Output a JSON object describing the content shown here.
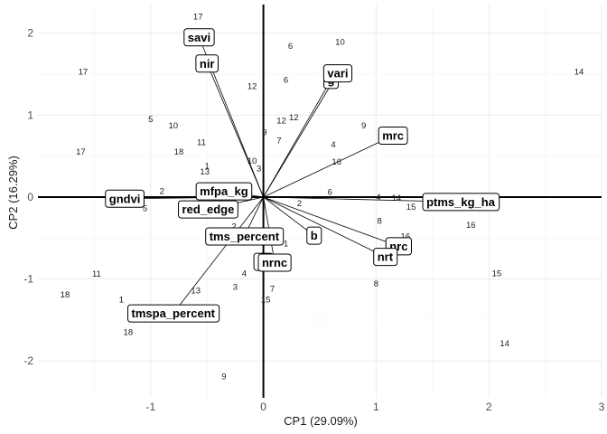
{
  "chart_data": {
    "type": "scatter",
    "subtype": "pca-biplot",
    "title": "",
    "xlabel": "CP1 (29.09%)",
    "ylabel": "CP2 (16.29%)",
    "xlim": [
      -2.0,
      3.0
    ],
    "ylim": [
      -2.45,
      2.35
    ],
    "xticks": [
      -1,
      0,
      1,
      2,
      3
    ],
    "yticks": [
      -2,
      -1,
      0,
      1,
      2
    ],
    "grid": true,
    "zero_lines": true,
    "observations": [
      {
        "label": "17",
        "x": -0.58,
        "y": 2.2
      },
      {
        "label": "17",
        "x": -1.6,
        "y": 1.53
      },
      {
        "label": "17",
        "x": -1.62,
        "y": 0.55
      },
      {
        "label": "5",
        "x": -1.0,
        "y": 0.95
      },
      {
        "label": "10",
        "x": -0.8,
        "y": 0.87
      },
      {
        "label": "18",
        "x": -0.75,
        "y": 0.55
      },
      {
        "label": "11",
        "x": -0.55,
        "y": 0.67
      },
      {
        "label": "13",
        "x": -0.52,
        "y": 0.31
      },
      {
        "label": "1",
        "x": -0.5,
        "y": 0.38
      },
      {
        "label": "10",
        "x": -0.1,
        "y": 0.44
      },
      {
        "label": "3",
        "x": -0.04,
        "y": 0.35
      },
      {
        "label": "2",
        "x": -0.9,
        "y": 0.07
      },
      {
        "label": "5",
        "x": -1.05,
        "y": -0.14
      },
      {
        "label": "2",
        "x": -0.26,
        "y": -0.36
      },
      {
        "label": "4",
        "x": -0.17,
        "y": -0.93
      },
      {
        "label": "3",
        "x": -0.25,
        "y": -1.1
      },
      {
        "label": "13",
        "x": -0.6,
        "y": -1.14
      },
      {
        "label": "11",
        "x": -1.48,
        "y": -0.94
      },
      {
        "label": "18",
        "x": -1.76,
        "y": -1.19
      },
      {
        "label": "1",
        "x": -1.26,
        "y": -1.25
      },
      {
        "label": "18",
        "x": -1.2,
        "y": -1.65
      },
      {
        "label": "9",
        "x": -0.35,
        "y": -2.19
      },
      {
        "label": "7",
        "x": 0.08,
        "y": -1.12
      },
      {
        "label": "15",
        "x": 0.02,
        "y": -1.25
      },
      {
        "label": "1",
        "x": 0.2,
        "y": -0.57
      },
      {
        "label": "6",
        "x": 0.24,
        "y": 1.84
      },
      {
        "label": "6",
        "x": 0.2,
        "y": 1.43
      },
      {
        "label": "12",
        "x": -0.1,
        "y": 1.35
      },
      {
        "label": "12",
        "x": 0.16,
        "y": 0.93
      },
      {
        "label": "12",
        "x": 0.27,
        "y": 0.97
      },
      {
        "label": "9",
        "x": 0.01,
        "y": 0.79
      },
      {
        "label": "7",
        "x": 0.14,
        "y": 0.69
      },
      {
        "label": "10",
        "x": 0.68,
        "y": 1.89
      },
      {
        "label": "9",
        "x": 0.89,
        "y": 0.87
      },
      {
        "label": "4",
        "x": 0.62,
        "y": 0.64
      },
      {
        "label": "16",
        "x": 0.65,
        "y": 0.43
      },
      {
        "label": "6",
        "x": 0.59,
        "y": 0.06
      },
      {
        "label": "2",
        "x": 0.32,
        "y": -0.08
      },
      {
        "label": "4",
        "x": 1.02,
        "y": 0.0
      },
      {
        "label": "14",
        "x": 1.18,
        "y": -0.01
      },
      {
        "label": "15",
        "x": 1.31,
        "y": -0.12
      },
      {
        "label": "8",
        "x": 1.03,
        "y": -0.29
      },
      {
        "label": "16",
        "x": 1.26,
        "y": -0.48
      },
      {
        "label": "16",
        "x": 1.84,
        "y": -0.34
      },
      {
        "label": "8",
        "x": 1.0,
        "y": -1.06
      },
      {
        "label": "15",
        "x": 2.07,
        "y": -0.93
      },
      {
        "label": "14",
        "x": 2.8,
        "y": 1.53
      },
      {
        "label": "14",
        "x": 2.14,
        "y": -1.79
      }
    ],
    "loadings": [
      {
        "name": "savi",
        "x": -0.57,
        "y": 1.95
      },
      {
        "name": "nir",
        "x": -0.5,
        "y": 1.63
      },
      {
        "name": "gndvi",
        "x": -1.23,
        "y": -0.02
      },
      {
        "name": "mfpa_kg",
        "x": -0.35,
        "y": 0.07
      },
      {
        "name": "red_edge",
        "x": -0.49,
        "y": -0.15
      },
      {
        "name": "tms_percent",
        "x": -0.17,
        "y": -0.48
      },
      {
        "name": "tmspa_percent",
        "x": -0.8,
        "y": -1.42
      },
      {
        "name": "pr",
        "x": 0.0,
        "y": -0.79
      },
      {
        "name": "nrnc",
        "x": 0.1,
        "y": -0.8
      },
      {
        "name": "b",
        "x": 0.45,
        "y": -0.47
      },
      {
        "name": "g",
        "x": 0.6,
        "y": 1.43
      },
      {
        "name": "vari",
        "x": 0.66,
        "y": 1.51
      },
      {
        "name": "mrc",
        "x": 1.15,
        "y": 0.75
      },
      {
        "name": "nrc",
        "x": 1.2,
        "y": -0.6
      },
      {
        "name": "nrt",
        "x": 1.08,
        "y": -0.73
      },
      {
        "name": "ptms_kg_ha",
        "x": 1.75,
        "y": -0.06
      }
    ]
  }
}
